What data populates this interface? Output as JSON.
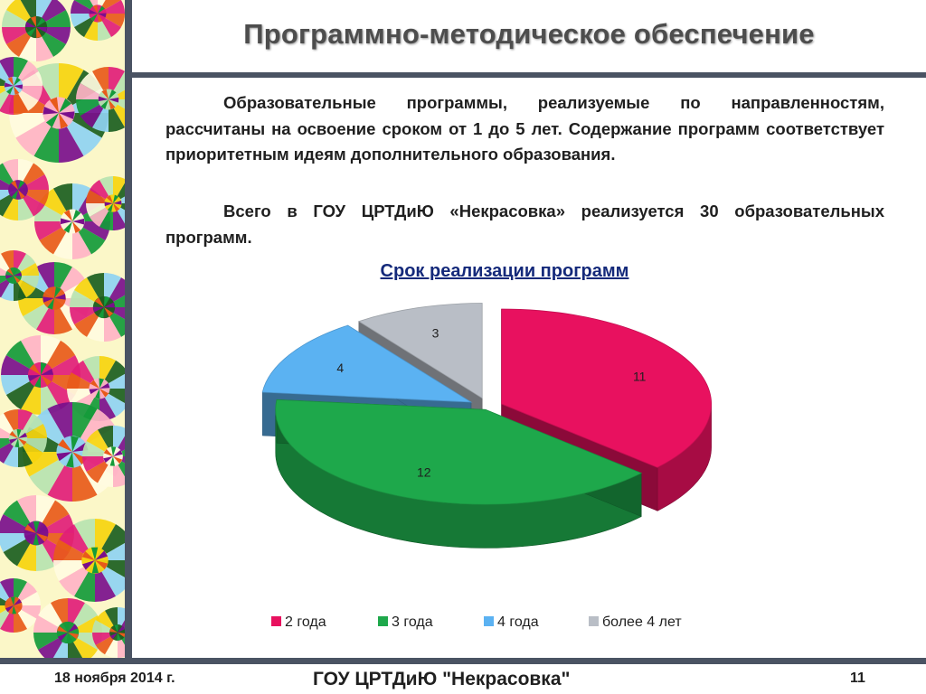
{
  "slide": {
    "title": "Программно-методическое обеспечение",
    "paragraph1": "Образовательные программы, реализуемые по направленностям, рассчитаны на освоение сроком от 1 до 5 лет. Содержание программ соответствует приоритетным идеям дополнительного образования.",
    "paragraph2": "Всего в ГОУ ЦРТДиЮ «Некрасовка» реализуется 30 образовательных программ."
  },
  "chart_data": {
    "type": "pie",
    "title": "Срок реализации программ",
    "categories": [
      "2 года",
      "3 года",
      "4 года",
      "более 4 лет"
    ],
    "values": [
      11,
      12,
      4,
      3
    ],
    "colors": [
      "#e8115f",
      "#1ea84b",
      "#5bb2f2",
      "#b9bec6"
    ],
    "style": "3d-exploded",
    "legend": "bottom"
  },
  "footer": {
    "date": "18 ноября 2014 г.",
    "organization": "ГОУ ЦРТДиЮ \"Некрасовка\"",
    "page_number": "11"
  },
  "decoration": {
    "strip_colors": [
      "#7a0f8c",
      "#f6d40e",
      "#e85a1a",
      "#149a3a",
      "#1b5e20",
      "#e11d78",
      "#ffb3c6",
      "#8fd3f2",
      "#b7e3b0",
      "#fffbe0"
    ]
  }
}
